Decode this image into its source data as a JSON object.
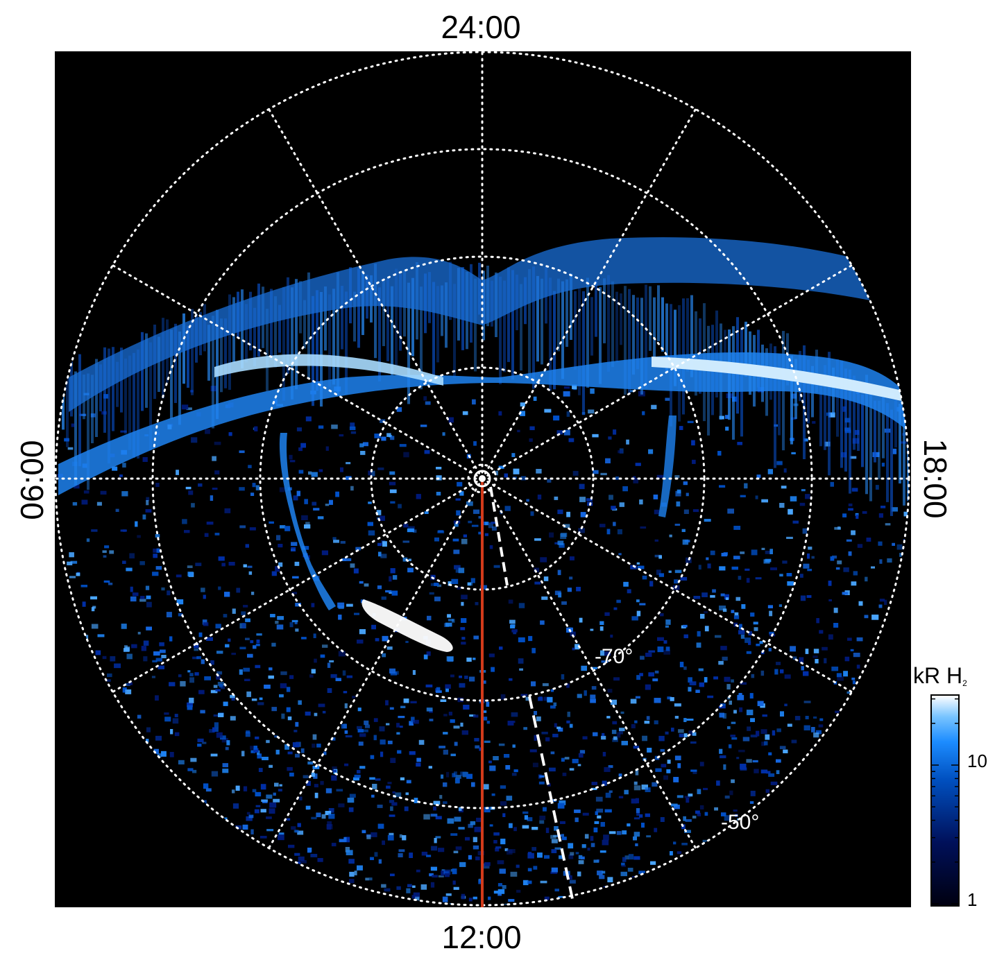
{
  "figure": {
    "local_time_labels": {
      "top": "24:00",
      "bottom": "12:00",
      "left": "06:00",
      "right": "18:00"
    },
    "latitude_labels": [
      "-70°",
      "-50°"
    ],
    "colorbar": {
      "title_main": "kR H",
      "title_subscript": "2",
      "scale": "log",
      "tick_labels": [
        "10",
        "1"
      ],
      "colors": [
        "#000010",
        "#00105a",
        "#0050c0",
        "#1c8cff",
        "#78c4ff",
        "#ffffff"
      ]
    },
    "colors": {
      "background": "#000000",
      "grid": "#ffffff",
      "meridian_line": "#d23a1a",
      "aurora_bright": "#a8dcff",
      "aurora_mid": "#1e82f0",
      "aurora_dim": "#003c9c"
    },
    "grid": {
      "style": "dotted",
      "meridian_spacing_hours": 2
    }
  }
}
